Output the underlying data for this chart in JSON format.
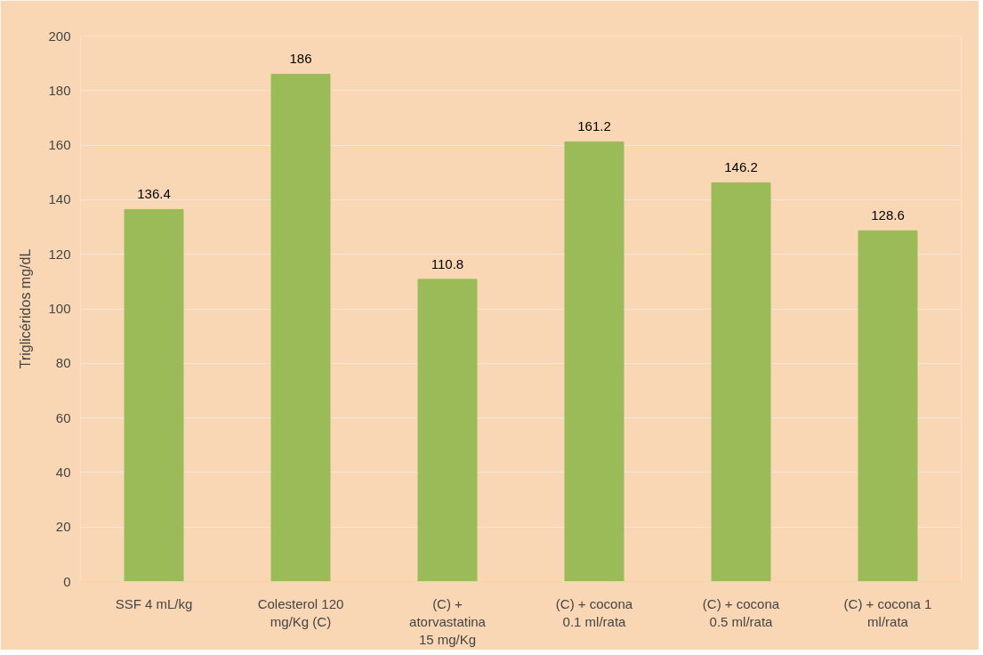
{
  "chart_data": {
    "type": "bar",
    "ylabel": "Triglicéridos mg/dL",
    "categories": [
      "SSF 4 mL/kg",
      "Colesterol 120\nmg/Kg (C)",
      "(C) +\natorvastatina\n15 mg/Kg",
      "(C) + cocona\n0.1 ml/rata",
      "(C) + cocona\n0.5 ml/rata",
      "(C) + cocona 1\nml/rata"
    ],
    "values": [
      136.4,
      186,
      110.8,
      161.2,
      146.2,
      128.6
    ],
    "color": "#9bbb59",
    "ylim": [
      0,
      200
    ],
    "yticks": [
      0,
      20,
      40,
      60,
      80,
      100,
      120,
      140,
      160,
      180,
      200
    ],
    "grid": "y",
    "data_labels": true
  }
}
